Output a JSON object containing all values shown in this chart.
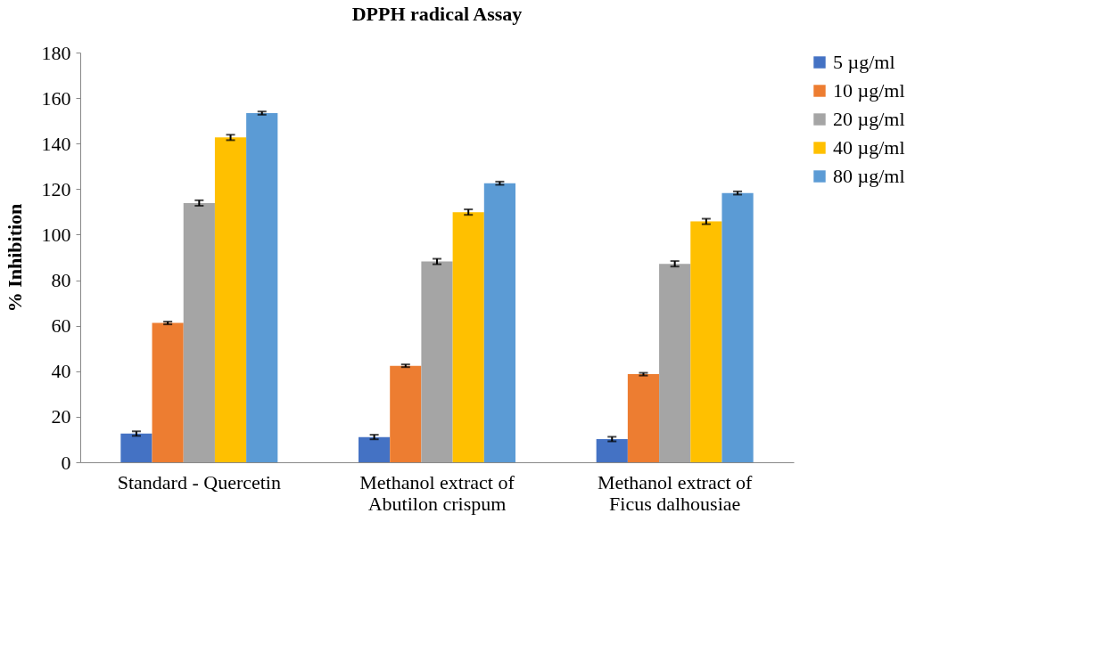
{
  "chart_data": {
    "type": "bar",
    "title": "DPPH radical Assay",
    "ylabel": "% Inhibition",
    "categories": [
      "Standard - Quercetin",
      "Methanol extract of\nAbutilon crispum",
      "Methanol extract of\nFicus dalhousiae"
    ],
    "series": [
      {
        "name": "5 µg/ml",
        "color": "#4472c4",
        "values": [
          12.6,
          11.1,
          10.2
        ],
        "errors": [
          1.0,
          1.0,
          1.0
        ]
      },
      {
        "name": "10 µg/ml",
        "color": "#ed7d31",
        "values": [
          61.2,
          42.4,
          38.7
        ],
        "errors": [
          0.6,
          0.6,
          0.6
        ]
      },
      {
        "name": "20 µg/ml",
        "color": "#a5a5a5",
        "values": [
          113.9,
          88.2,
          87.2
        ],
        "errors": [
          1.2,
          1.2,
          1.2
        ]
      },
      {
        "name": "40 µg/ml",
        "color": "#ffc000",
        "values": [
          142.7,
          109.9,
          105.8
        ],
        "errors": [
          1.2,
          1.2,
          1.2
        ]
      },
      {
        "name": "80 µg/ml",
        "color": "#5b9bd5",
        "values": [
          153.4,
          122.6,
          118.3
        ],
        "errors": [
          0.7,
          0.7,
          0.7
        ]
      }
    ],
    "ylim": [
      0,
      180
    ],
    "yticks": [
      0,
      20,
      40,
      60,
      80,
      100,
      120,
      140,
      160,
      180
    ],
    "grid": false,
    "legend": "right"
  }
}
